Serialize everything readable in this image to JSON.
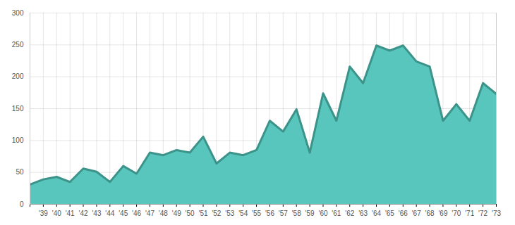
{
  "chart_data": {
    "type": "area",
    "categories": [
      null,
      "'39",
      "'40",
      "'41",
      "'42",
      "'43",
      "'44",
      "'45",
      "'46",
      "'47",
      "'48",
      "'49",
      "'50",
      "'51",
      "'52",
      "'53",
      "'54",
      "'55",
      "'56",
      "'57",
      "'58",
      "'59",
      "'60",
      "'61",
      "'62",
      "'63",
      "'64",
      "'65",
      "'66",
      "'67",
      "'68",
      "'69",
      "'70",
      "'71",
      "'72",
      "'73"
    ],
    "values": [
      31,
      39,
      43,
      35,
      56,
      51,
      35,
      60,
      48,
      81,
      77,
      85,
      81,
      106,
      64,
      81,
      77,
      85,
      131,
      114,
      149,
      81,
      174,
      131,
      216,
      190,
      249,
      241,
      249,
      224,
      216,
      131,
      157,
      131,
      190,
      173
    ],
    "color": "#4fc3b8",
    "ylim": [
      0,
      300
    ],
    "yticks": [
      0,
      50,
      100,
      150,
      200,
      250,
      300
    ],
    "grid": true
  }
}
